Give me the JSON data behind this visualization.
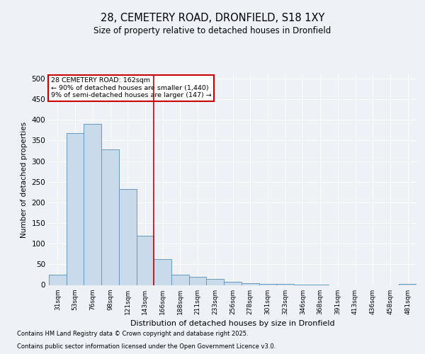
{
  "title1": "28, CEMETERY ROAD, DRONFIELD, S18 1XY",
  "title2": "Size of property relative to detached houses in Dronfield",
  "xlabel": "Distribution of detached houses by size in Dronfield",
  "ylabel": "Number of detached properties",
  "categories": [
    "31sqm",
    "53sqm",
    "76sqm",
    "98sqm",
    "121sqm",
    "143sqm",
    "166sqm",
    "188sqm",
    "211sqm",
    "233sqm",
    "256sqm",
    "278sqm",
    "301sqm",
    "323sqm",
    "346sqm",
    "368sqm",
    "391sqm",
    "413sqm",
    "436sqm",
    "458sqm",
    "481sqm"
  ],
  "values": [
    25,
    367,
    390,
    328,
    232,
    120,
    62,
    25,
    20,
    15,
    7,
    5,
    3,
    2,
    1,
    1,
    0,
    0,
    0,
    0,
    3
  ],
  "bar_color": "#c9daea",
  "bar_edge_color": "#6699bb",
  "vline_color": "#cc0000",
  "vline_x_index": 5.5,
  "annotation_text": "28 CEMETERY ROAD: 162sqm\n← 90% of detached houses are smaller (1,440)\n9% of semi-detached houses are larger (147) →",
  "annotation_box_color": "#cc0000",
  "ylim": [
    0,
    510
  ],
  "yticks": [
    0,
    50,
    100,
    150,
    200,
    250,
    300,
    350,
    400,
    450,
    500
  ],
  "footer1": "Contains HM Land Registry data © Crown copyright and database right 2025.",
  "footer2": "Contains public sector information licensed under the Open Government Licence v3.0.",
  "background_color": "#eef2f7",
  "grid_color": "#ffffff"
}
